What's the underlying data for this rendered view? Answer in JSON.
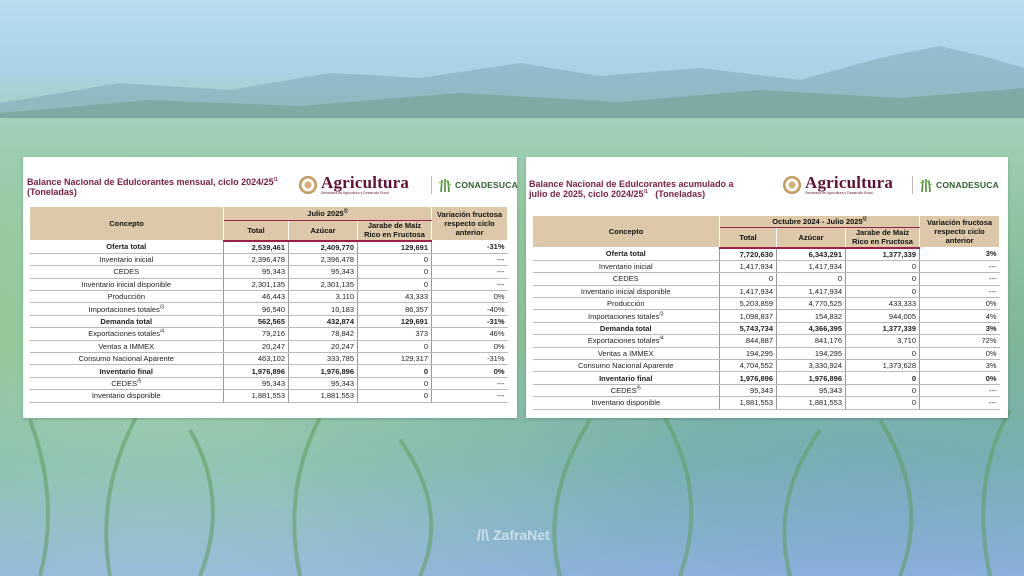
{
  "colors": {
    "title": "#7a1f3b",
    "header_bg": "#ddc9a9",
    "accent_line": "#9b2247"
  },
  "left": {
    "title_line1": "Balance Nacional de Edulcorantes mensual, ciclo 2024/25",
    "title_sup": "/1",
    "title_line2": "(Toneladas)",
    "logo_agri": "Agricultura",
    "logo_agri_sub": "Secretaría de Agricultura y Desarrollo Rural",
    "logo_cona": "CONADESUCA",
    "header": {
      "concepto": "Concepto",
      "period": "Julio 2025",
      "period_sup": "/2",
      "total": "Total",
      "azucar": "Azúcar",
      "jarabe": "Jarabe de Maíz Rico en Fructosa",
      "variacion": "Variación fructosa respecto ciclo anterior"
    },
    "rows": [
      {
        "concepto": "Oferta total",
        "sup": "",
        "total": "2,539,461",
        "azucar": "2,409,770",
        "jarabe": "129,691",
        "var": "-31%",
        "bold": true
      },
      {
        "concepto": "Inventario inicial",
        "sup": "",
        "total": "2,396,478",
        "azucar": "2,396,478",
        "jarabe": "0",
        "var": "---",
        "bold": false
      },
      {
        "concepto": "CEDES",
        "sup": "",
        "total": "95,343",
        "azucar": "95,343",
        "jarabe": "0",
        "var": "---",
        "bold": false
      },
      {
        "concepto": "Inventario inicial disponible",
        "sup": "",
        "total": "2,301,135",
        "azucar": "2,301,135",
        "jarabe": "0",
        "var": "---",
        "bold": false
      },
      {
        "concepto": "Producción",
        "sup": "",
        "total": "46,443",
        "azucar": "3,110",
        "jarabe": "43,333",
        "var": "0%",
        "bold": false
      },
      {
        "concepto": "Importaciones totales",
        "sup": "/3",
        "total": "96,540",
        "azucar": "10,183",
        "jarabe": "86,357",
        "var": "-40%",
        "bold": false
      },
      {
        "concepto": "Demanda total",
        "sup": "",
        "total": "562,565",
        "azucar": "432,874",
        "jarabe": "129,691",
        "var": "-31%",
        "bold": true
      },
      {
        "concepto": "Exportaciones totales",
        "sup": "/4",
        "total": "79,216",
        "azucar": "78,842",
        "jarabe": "373",
        "var": "46%",
        "bold": false
      },
      {
        "concepto": "Ventas a IMMEX",
        "sup": "",
        "total": "20,247",
        "azucar": "20,247",
        "jarabe": "0",
        "var": "0%",
        "bold": false
      },
      {
        "concepto": "Consumo Nacional Aparente",
        "sup": "",
        "total": "463,102",
        "azucar": "333,785",
        "jarabe": "129,317",
        "var": "-31%",
        "bold": false
      },
      {
        "concepto": "Inventario final",
        "sup": "",
        "total": "1,976,896",
        "azucar": "1,976,896",
        "jarabe": "0",
        "var": "0%",
        "bold": true
      },
      {
        "concepto": "CEDES",
        "sup": "/5",
        "total": "95,343",
        "azucar": "95,343",
        "jarabe": "0",
        "var": "---",
        "bold": false
      },
      {
        "concepto": "Inventario disponible",
        "sup": "",
        "total": "1,881,553",
        "azucar": "1,881,553",
        "jarabe": "0",
        "var": "---",
        "bold": false
      }
    ]
  },
  "right": {
    "title_line1": "Balance Nacional de Edulcorantes acumulado a",
    "title_line2": "julio de 2025, ciclo 2024/25",
    "title_sup": "/1",
    "title_line2b": "(Toneladas)",
    "logo_agri": "Agricultura",
    "logo_agri_sub": "Secretaría de Agricultura y Desarrollo Rural",
    "logo_cona": "CONADESUCA",
    "header": {
      "concepto": "Concepto",
      "period": "Octubre 2024 - Julio 2025",
      "period_sup": "/2",
      "total": "Total",
      "azucar": "Azúcar",
      "jarabe": "Jarabe de Maíz Rico en Fructosa",
      "variacion": "Variación fructosa respecto ciclo anterior"
    },
    "rows": [
      {
        "concepto": "Oferta total",
        "sup": "",
        "total": "7,720,630",
        "azucar": "6,343,291",
        "jarabe": "1,377,339",
        "var": "3%",
        "bold": true
      },
      {
        "concepto": "Inventario inicial",
        "sup": "",
        "total": "1,417,934",
        "azucar": "1,417,934",
        "jarabe": "0",
        "var": "---",
        "bold": false
      },
      {
        "concepto": "CEDES",
        "sup": "",
        "total": "0",
        "azucar": "0",
        "jarabe": "0",
        "var": "---",
        "bold": false
      },
      {
        "concepto": "Inventario inicial disponible",
        "sup": "",
        "total": "1,417,934",
        "azucar": "1,417,934",
        "jarabe": "0",
        "var": "---",
        "bold": false
      },
      {
        "concepto": "Producción",
        "sup": "",
        "total": "5,203,859",
        "azucar": "4,770,525",
        "jarabe": "433,333",
        "var": "0%",
        "bold": false
      },
      {
        "concepto": "Importaciones totales",
        "sup": "/3",
        "total": "1,098,837",
        "azucar": "154,832",
        "jarabe": "944,005",
        "var": "4%",
        "bold": false
      },
      {
        "concepto": "Demanda total",
        "sup": "",
        "total": "5,743,734",
        "azucar": "4,366,395",
        "jarabe": "1,377,339",
        "var": "3%",
        "bold": true
      },
      {
        "concepto": "Exportaciones totales",
        "sup": "/4",
        "total": "844,887",
        "azucar": "841,176",
        "jarabe": "3,710",
        "var": "72%",
        "bold": false
      },
      {
        "concepto": "Ventas a IMMEX",
        "sup": "",
        "total": "194,295",
        "azucar": "194,295",
        "jarabe": "0",
        "var": "0%",
        "bold": false
      },
      {
        "concepto": "Consumo Nacional Aparente",
        "sup": "",
        "total": "4,704,552",
        "azucar": "3,330,924",
        "jarabe": "1,373,628",
        "var": "3%",
        "bold": false
      },
      {
        "concepto": "Inventario final",
        "sup": "",
        "total": "1,976,896",
        "azucar": "1,976,896",
        "jarabe": "0",
        "var": "0%",
        "bold": true
      },
      {
        "concepto": "CEDES",
        "sup": "/5",
        "total": "95,343",
        "azucar": "95,343",
        "jarabe": "0",
        "var": "---",
        "bold": false
      },
      {
        "concepto": "Inventario disponible",
        "sup": "",
        "total": "1,881,553",
        "azucar": "1,881,553",
        "jarabe": "0",
        "var": "---",
        "bold": false
      }
    ]
  },
  "watermark": "ZafraNet"
}
